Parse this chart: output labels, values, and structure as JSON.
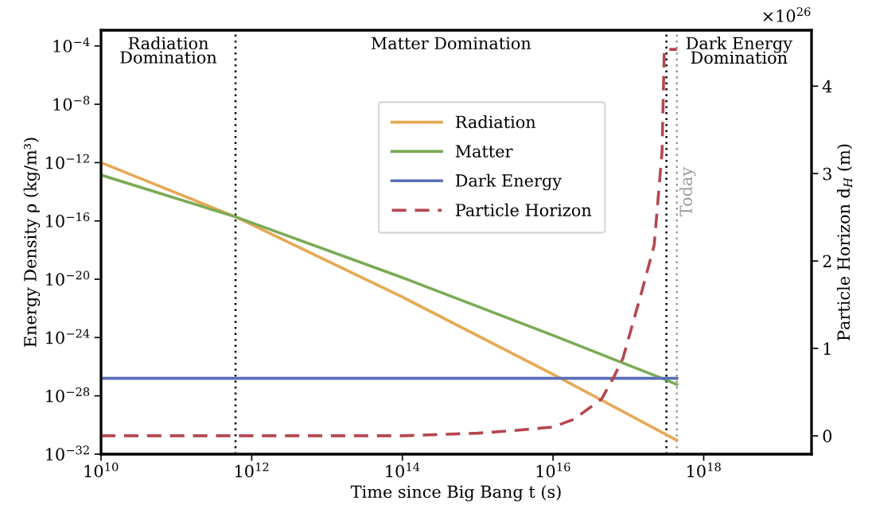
{
  "chart_data": {
    "type": "line",
    "xlabel": "Time since Big Bang t (s)",
    "ylabel": "Energy Density ρ (kg/m³)",
    "y2label": "Particle Horizon d$_{H}$ (m)",
    "log": "xy",
    "grid": false,
    "legend": "top",
    "marker": "none",
    "xlim": [
      10000000000.0,
      2.7e+19
    ],
    "ylim": [
      1e-32,
      0.0012
    ],
    "y2lim": [
      -0.21,
      4.64
    ],
    "xticks": [
      {
        "value": 10000000000.0,
        "label": "10$^{10}$"
      },
      {
        "value": 1000000000000.0,
        "label": "10$^{12}$"
      },
      {
        "value": 100000000000000.0,
        "label": "10$^{14}$"
      },
      {
        "value": 1e+16,
        "label": "10$^{16}$"
      },
      {
        "value": 1e+18,
        "label": "10$^{18}$"
      }
    ],
    "yticks": [
      {
        "value": 1e-32,
        "label": "10$^{−32}$"
      },
      {
        "value": 1e-28,
        "label": "10$^{−28}$"
      },
      {
        "value": 1e-24,
        "label": "10$^{−24}$"
      },
      {
        "value": 1e-20,
        "label": "10$^{−20}$"
      },
      {
        "value": 1e-16,
        "label": "10$^{−16}$"
      },
      {
        "value": 1e-12,
        "label": "10$^{−12}$"
      },
      {
        "value": 1e-08,
        "label": "10$^{−8}$"
      },
      {
        "value": 0.0001,
        "label": "10$^{−4}$"
      }
    ],
    "y2ticks": [
      0,
      1,
      2,
      3,
      4
    ],
    "series": [
      {
        "name": "Radiation",
        "color": "#e8a854",
        "x": [
          10000000000.0,
          610000000000.0,
          100000000000000.0,
          1e+16,
          4.4e+17
        ],
        "values": [
          1e-12,
          1.9e-16,
          6e-22,
          3e-27,
          9e-32
        ]
      },
      {
        "name": "Matter",
        "color": "#7aab55",
        "x": [
          10000000000.0,
          610000000000.0,
          100000000000000.0,
          1e+16,
          3.2e+17,
          4.4e+17
        ],
        "values": [
          1.4e-13,
          1.9e-16,
          1.3e-20,
          1.4e-24,
          1.2e-27,
          6e-28
        ]
      },
      {
        "name": "Dark Energy",
        "color": "#5a6fb8",
        "x": [
          10000000000.0,
          4.4e+17
        ],
        "values": [
          1.6e-27,
          1.6e-27
        ]
      },
      {
        "name": "Particle Horizon",
        "color": "#b5474f",
        "axis": "y2",
        "line_style": "dashed",
        "x": [
          10000000000.0,
          1000000000000.0,
          100000000000000.0,
          1000000000000000.0,
          3000000000000000.0,
          1e+16,
          1.9e+16,
          4.4e+16,
          6.3e+16,
          8.5e+16,
          1.55e+17,
          2.2e+17,
          2.8e+17,
          3e+17,
          4.4e+17
        ],
        "values": [
          0,
          0,
          0,
          0.03,
          0.06,
          0.1,
          0.19,
          0.42,
          0.66,
          0.89,
          1.69,
          2.18,
          3.25,
          4.42,
          4.42
        ]
      }
    ],
    "ref_lines": [
      {
        "axis": "x",
        "value": 610000000000.0,
        "color": "#000000",
        "line_style": "dotted"
      },
      {
        "axis": "x",
        "value": 3.2e+17,
        "color": "#000000",
        "line_style": "dotted"
      },
      {
        "axis": "x",
        "value": 4.4e+17,
        "label": "Today",
        "color": "#999999",
        "line_style": "dotted"
      }
    ],
    "annotations": [
      "Radiation\nDomination",
      "Matter Domination",
      "Dark Energy\nDomination",
      "×10$^{26}$"
    ]
  }
}
